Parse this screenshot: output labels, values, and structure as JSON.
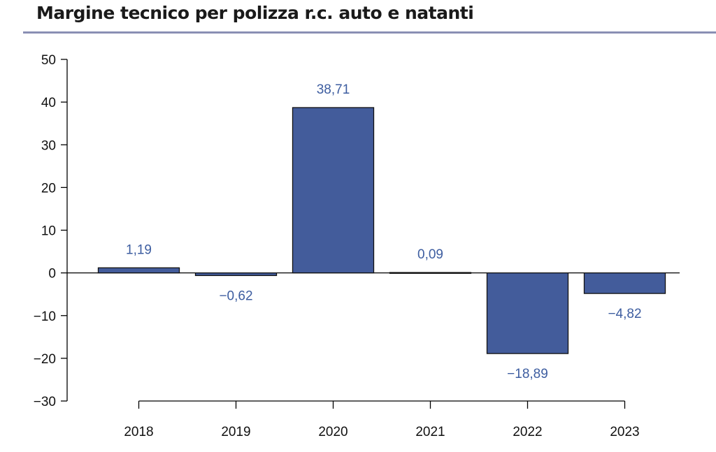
{
  "title": "Margine tecnico per polizza r.c. auto e natanti",
  "colors": {
    "bar": "#435c9b",
    "label": "#3d5da0",
    "rule": "#8a8fb4"
  },
  "chart_data": {
    "type": "bar",
    "title": "Margine tecnico per polizza r.c. auto e natanti",
    "xlabel": "",
    "ylabel": "",
    "categories": [
      "2018",
      "2019",
      "2020",
      "2021",
      "2022",
      "2023"
    ],
    "values": [
      1.19,
      -0.62,
      38.71,
      0.09,
      -18.89,
      -4.82
    ],
    "data_labels": [
      "1,19",
      "−0,62",
      "38,71",
      "0,09",
      "−18,89",
      "−4,82"
    ],
    "ylim": [
      -30,
      50
    ],
    "yticks": [
      50,
      40,
      30,
      20,
      10,
      0,
      -10,
      -20,
      -30
    ],
    "ytick_labels": [
      "50",
      "40",
      "30",
      "20",
      "10",
      "0",
      "−10",
      "−20",
      "−30"
    ],
    "grid": false,
    "legend": "none"
  }
}
